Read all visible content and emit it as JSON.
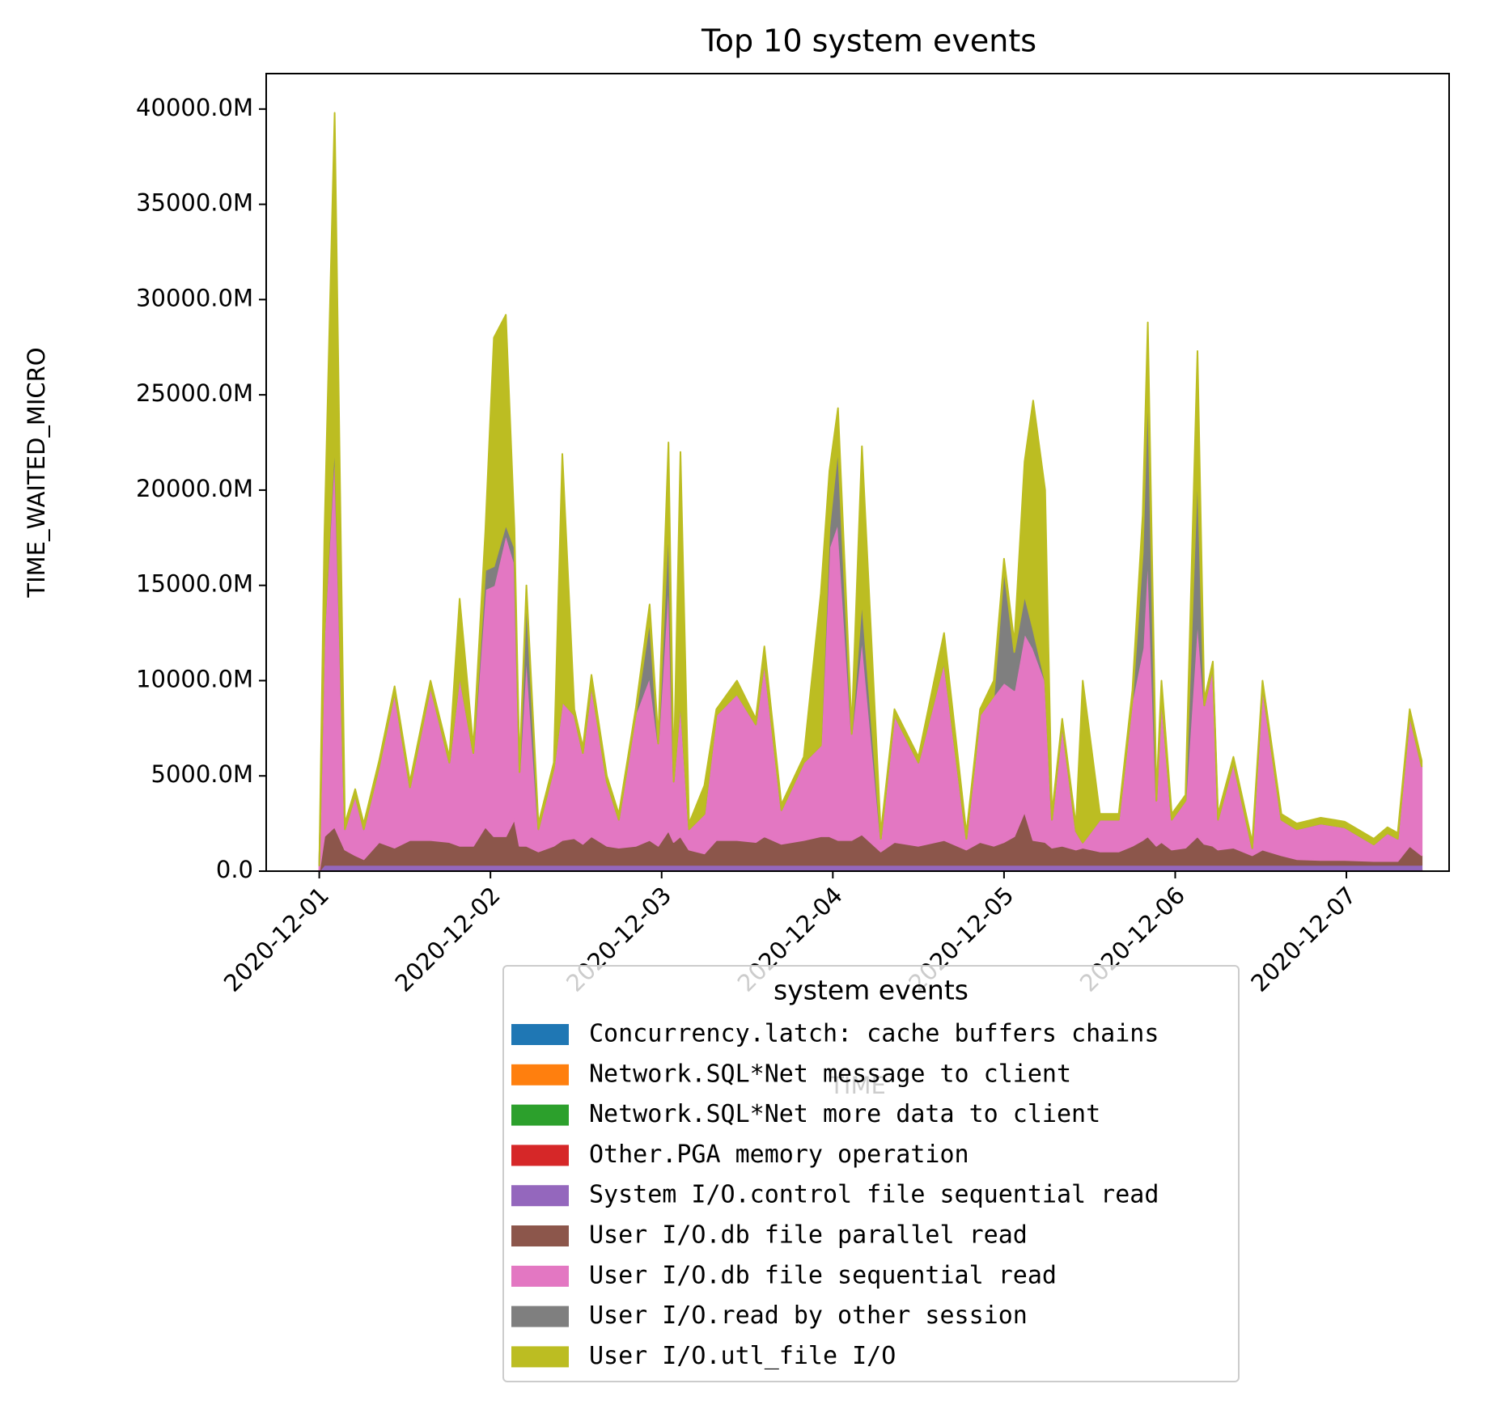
{
  "chart_data": {
    "type": "stackplot",
    "title": "Top 10 system events",
    "xlabel": "TIME",
    "ylabel": "TIME_WAITED_MICRO",
    "legend_title": "system events",
    "x": [
      0,
      0.03,
      0.09,
      0.15,
      0.21,
      0.26,
      0.35,
      0.44,
      0.53,
      0.65,
      0.76,
      0.82,
      0.9,
      0.97,
      1.02,
      1.09,
      1.14,
      1.17,
      1.21,
      1.28,
      1.37,
      1.42,
      1.49,
      1.54,
      1.59,
      1.68,
      1.75,
      1.85,
      1.93,
      1.98,
      2.04,
      2.07,
      2.11,
      2.16,
      2.25,
      2.32,
      2.44,
      2.55,
      2.6,
      2.7,
      2.83,
      2.93,
      2.98,
      3.03,
      3.11,
      3.17,
      3.28,
      3.36,
      3.5,
      3.65,
      3.78,
      3.86,
      3.94,
      4,
      4.06,
      4.12,
      4.17,
      4.24,
      4.28,
      4.34,
      4.42,
      4.46,
      4.56,
      4.67,
      4.75,
      4.81,
      4.84,
      4.89,
      4.92,
      4.98,
      5.06,
      5.13,
      5.17,
      5.22,
      5.25,
      5.34,
      5.45,
      5.51,
      5.62,
      5.71,
      5.85,
      5.99,
      6.16,
      6.24,
      6.3,
      6.37,
      6.44
    ],
    "xlim": [
      -0.31,
      6.6
    ],
    "xticks": [
      {
        "value": 0,
        "label": "2020-12-01"
      },
      {
        "value": 1,
        "label": "2020-12-02"
      },
      {
        "value": 2,
        "label": "2020-12-03"
      },
      {
        "value": 3,
        "label": "2020-12-04"
      },
      {
        "value": 4,
        "label": "2020-12-05"
      },
      {
        "value": 5,
        "label": "2020-12-06"
      },
      {
        "value": 6,
        "label": "2020-12-07"
      }
    ],
    "ylim": [
      0,
      41860
    ],
    "yticks": [
      {
        "value": 0,
        "label": "0.0"
      },
      {
        "value": 5000,
        "label": "5000.0M"
      },
      {
        "value": 10000,
        "label": "10000.0M"
      },
      {
        "value": 15000,
        "label": "15000.0M"
      },
      {
        "value": 20000,
        "label": "20000.0M"
      },
      {
        "value": 25000,
        "label": "25000.0M"
      },
      {
        "value": 30000,
        "label": "30000.0M"
      },
      {
        "value": 35000,
        "label": "35000.0M"
      },
      {
        "value": 40000,
        "label": "40000.0M"
      }
    ],
    "series": [
      {
        "name": "Concurrency.latch: cache buffers chains",
        "color": "#1f77b4",
        "values": [
          0,
          20,
          20,
          20,
          20,
          20,
          20,
          20,
          20,
          20,
          20,
          20,
          20,
          20,
          20,
          20,
          20,
          20,
          20,
          20,
          20,
          20,
          20,
          20,
          20,
          20,
          20,
          20,
          20,
          20,
          20,
          20,
          20,
          20,
          20,
          20,
          20,
          20,
          20,
          20,
          20,
          20,
          20,
          20,
          20,
          20,
          20,
          20,
          20,
          20,
          20,
          20,
          20,
          20,
          20,
          20,
          20,
          20,
          20,
          20,
          20,
          20,
          20,
          20,
          20,
          20,
          20,
          20,
          20,
          20,
          20,
          20,
          20,
          20,
          20,
          20,
          20,
          20,
          20,
          20,
          20,
          20,
          20,
          20,
          20,
          20,
          20
        ]
      },
      {
        "name": "Network.SQL*Net message to client",
        "color": "#ff7f0e",
        "values": [
          0,
          10,
          10,
          10,
          10,
          10,
          10,
          10,
          10,
          10,
          10,
          10,
          10,
          10,
          10,
          10,
          10,
          10,
          10,
          10,
          10,
          10,
          10,
          10,
          10,
          10,
          10,
          10,
          10,
          10,
          10,
          10,
          10,
          10,
          10,
          10,
          10,
          10,
          10,
          10,
          10,
          10,
          10,
          10,
          10,
          10,
          10,
          10,
          10,
          10,
          10,
          10,
          10,
          10,
          10,
          10,
          10,
          10,
          10,
          10,
          10,
          10,
          10,
          10,
          10,
          10,
          10,
          10,
          10,
          10,
          10,
          10,
          10,
          10,
          10,
          10,
          10,
          10,
          10,
          10,
          10,
          10,
          10,
          10,
          10,
          10,
          10
        ]
      },
      {
        "name": "Network.SQL*Net more data to client",
        "color": "#2ca02c",
        "values": [
          0,
          20,
          20,
          20,
          20,
          20,
          20,
          20,
          20,
          20,
          20,
          20,
          20,
          20,
          20,
          20,
          20,
          20,
          20,
          20,
          20,
          20,
          20,
          20,
          20,
          20,
          20,
          20,
          20,
          20,
          20,
          20,
          20,
          20,
          20,
          20,
          20,
          20,
          20,
          20,
          20,
          20,
          20,
          20,
          20,
          20,
          20,
          20,
          20,
          20,
          20,
          20,
          20,
          20,
          20,
          20,
          20,
          20,
          20,
          20,
          20,
          20,
          20,
          20,
          20,
          20,
          20,
          20,
          20,
          20,
          20,
          20,
          20,
          20,
          20,
          20,
          20,
          20,
          20,
          20,
          20,
          20,
          20,
          20,
          20,
          20,
          20
        ]
      },
      {
        "name": "Other.PGA memory operation",
        "color": "#d62728",
        "values": [
          0,
          30,
          30,
          30,
          30,
          30,
          30,
          30,
          30,
          30,
          30,
          30,
          30,
          30,
          30,
          30,
          30,
          30,
          30,
          30,
          30,
          30,
          30,
          30,
          30,
          30,
          30,
          30,
          30,
          30,
          30,
          30,
          30,
          30,
          30,
          30,
          30,
          30,
          30,
          30,
          30,
          30,
          30,
          30,
          30,
          30,
          30,
          30,
          30,
          30,
          30,
          30,
          30,
          30,
          30,
          30,
          30,
          30,
          30,
          30,
          30,
          30,
          30,
          30,
          30,
          30,
          30,
          30,
          30,
          30,
          30,
          30,
          30,
          30,
          30,
          30,
          30,
          30,
          30,
          30,
          30,
          30,
          30,
          30,
          30,
          30,
          30
        ]
      },
      {
        "name": "System I/O.control file sequential read",
        "color": "#9467bd",
        "values": [
          0,
          250,
          250,
          250,
          250,
          250,
          250,
          250,
          250,
          250,
          250,
          250,
          250,
          250,
          250,
          250,
          250,
          250,
          250,
          250,
          250,
          250,
          250,
          250,
          250,
          250,
          250,
          250,
          250,
          250,
          250,
          250,
          250,
          250,
          250,
          250,
          250,
          250,
          250,
          250,
          250,
          250,
          250,
          250,
          250,
          250,
          250,
          250,
          250,
          250,
          250,
          250,
          250,
          250,
          250,
          250,
          250,
          250,
          250,
          250,
          250,
          250,
          250,
          250,
          250,
          250,
          250,
          250,
          250,
          250,
          250,
          250,
          250,
          250,
          250,
          250,
          250,
          250,
          250,
          250,
          250,
          250,
          250,
          250,
          250,
          250,
          250
        ]
      },
      {
        "name": "User I/O.db file parallel read",
        "color": "#8c564b",
        "values": [
          0,
          1500,
          2000,
          800,
          500,
          300,
          1200,
          900,
          1300,
          1300,
          1200,
          1000,
          1000,
          2000,
          1500,
          1500,
          2400,
          1000,
          1000,
          700,
          1000,
          1300,
          1400,
          1100,
          1500,
          1000,
          900,
          1000,
          1300,
          1000,
          1800,
          1200,
          1500,
          800,
          600,
          1300,
          1300,
          1200,
          1500,
          1100,
          1300,
          1500,
          1500,
          1300,
          1300,
          1600,
          700,
          1200,
          1000,
          1300,
          800,
          1200,
          1000,
          1200,
          1500,
          2800,
          1300,
          1200,
          900,
          1000,
          800,
          900,
          700,
          700,
          1000,
          1300,
          1500,
          1000,
          1200,
          800,
          900,
          1500,
          1100,
          1000,
          800,
          900,
          500,
          800,
          500,
          300,
          250,
          250,
          200,
          200,
          200,
          1000,
          500
        ]
      },
      {
        "name": "User I/O.db file sequential read",
        "color": "#e377c2",
        "values": [
          300,
          10670,
          19970,
          1070,
          3170,
          1570,
          3970,
          8170,
          2770,
          8070,
          4170,
          8970,
          4870,
          12470,
          13170,
          15870,
          13470,
          3870,
          10170,
          1170,
          4070,
          7270,
          6470,
          4770,
          7970,
          3370,
          1470,
          6970,
          8570,
          5370,
          13370,
          3170,
          7170,
          1070,
          2070,
          6570,
          7670,
          6170,
          9170,
          1770,
          4070,
          4770,
          15170,
          16670,
          5570,
          10370,
          670,
          6670,
          4370,
          9370,
          570,
          6670,
          7870,
          8370,
          7670,
          9370,
          10070,
          8470,
          1470,
          6370,
          970,
          270,
          1670,
          1670,
          7670,
          10070,
          14970,
          2370,
          7670,
          1570,
          2470,
          11470,
          7270,
          9370,
          1570,
          4470,
          370,
          8570,
          1870,
          1570,
          1920,
          1720,
          870,
          1470,
          1170,
          6870,
          4670
        ]
      },
      {
        "name": "User I/O.read by other session",
        "color": "#7f7f7f",
        "values": [
          0,
          0,
          500,
          0,
          0,
          0,
          0,
          0,
          0,
          0,
          0,
          0,
          0,
          1000,
          1000,
          500,
          800,
          0,
          3000,
          0,
          0,
          0,
          0,
          0,
          0,
          0,
          0,
          0,
          3000,
          0,
          3000,
          0,
          0,
          0,
          0,
          0,
          0,
          0,
          0,
          0,
          0,
          0,
          1000,
          4000,
          0,
          2000,
          0,
          0,
          0,
          0,
          0,
          0,
          0,
          6000,
          2000,
          2000,
          1000,
          0,
          0,
          0,
          0,
          0,
          0,
          0,
          0,
          5000,
          9000,
          0,
          0,
          0,
          0,
          8000,
          0,
          0,
          0,
          0,
          0,
          0,
          0,
          0,
          0,
          0,
          0,
          0,
          0,
          0,
          0
        ]
      },
      {
        "name": "User I/O.utl_file I/O",
        "color": "#bcbd22",
        "values": [
          0,
          5000,
          17000,
          300,
          300,
          300,
          300,
          300,
          300,
          300,
          300,
          4000,
          300,
          2000,
          12000,
          11000,
          1000,
          300,
          500,
          300,
          300,
          13000,
          300,
          300,
          500,
          300,
          300,
          300,
          800,
          300,
          4000,
          300,
          13000,
          300,
          1500,
          300,
          700,
          300,
          800,
          300,
          300,
          8000,
          3000,
          2000,
          300,
          8000,
          300,
          300,
          300,
          1500,
          300,
          300,
          800,
          500,
          500,
          7000,
          12000,
          10000,
          300,
          300,
          300,
          8500,
          300,
          300,
          500,
          2000,
          3000,
          300,
          800,
          300,
          300,
          6000,
          300,
          300,
          300,
          300,
          300,
          300,
          300,
          300,
          300,
          300,
          300,
          300,
          300,
          300,
          300
        ]
      }
    ]
  }
}
